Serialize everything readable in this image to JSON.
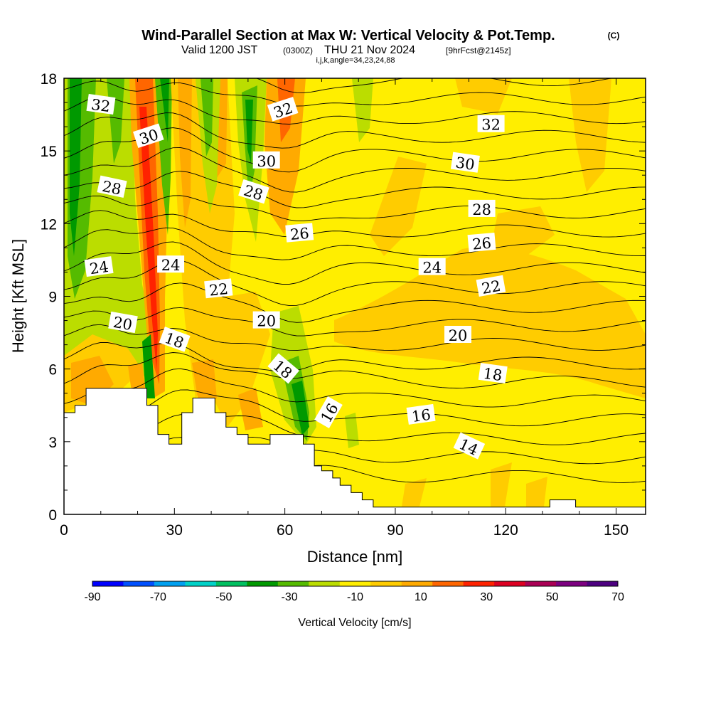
{
  "chart_data": {
    "type": "contour",
    "title": "Wind-Parallel Section at Max W: Vertical Velocity & Pot.Temp.",
    "copyright": "(C)",
    "subtitle": {
      "valid": "Valid 1200 JST",
      "utc": "(0300Z)",
      "date": "THU 21 Nov 2024",
      "forecast": "[9hrFcst@2145z]"
    },
    "section_info": "i,j,k,angle=34,23,24,88",
    "xlabel": "Distance [nm]",
    "ylabel": "Height [Kft MSL]",
    "xlim": [
      0,
      158
    ],
    "ylim": [
      0,
      18
    ],
    "x_ticks": [
      "0",
      "30",
      "60",
      "90",
      "120",
      "150"
    ],
    "y_ticks": [
      "0",
      "3",
      "6",
      "9",
      "12",
      "15",
      "18"
    ],
    "colorbar": {
      "title": "Vertical Velocity [cm/s]",
      "labels": [
        "-90",
        "-70",
        "-50",
        "-30",
        "-10",
        "10",
        "30",
        "50",
        "70"
      ],
      "colors": [
        "#0000ff",
        "#0050ff",
        "#00a0f0",
        "#00d2c8",
        "#00c060",
        "#009900",
        "#55bb00",
        "#bbdd00",
        "#ffee00",
        "#ffcc00",
        "#ffaa00",
        "#ff6600",
        "#ff2200",
        "#dd0022",
        "#aa0055",
        "#7d0080",
        "#4d0080"
      ]
    },
    "contour_labels": [
      {
        "text": "32",
        "x": 10,
        "y": 16.9,
        "rot": 8
      },
      {
        "text": "30",
        "x": 23,
        "y": 15.6,
        "rot": -18
      },
      {
        "text": "28",
        "x": 13,
        "y": 13.5,
        "rot": 12
      },
      {
        "text": "24",
        "x": 9.5,
        "y": 10.2,
        "rot": -8
      },
      {
        "text": "24",
        "x": 29,
        "y": 10.3,
        "rot": 0
      },
      {
        "text": "20",
        "x": 16,
        "y": 7.9,
        "rot": 10
      },
      {
        "text": "18",
        "x": 30,
        "y": 7.2,
        "rot": 20
      },
      {
        "text": "22",
        "x": 42,
        "y": 9.3,
        "rot": -6
      },
      {
        "text": "32",
        "x": 59.5,
        "y": 16.7,
        "rot": -18
      },
      {
        "text": "30",
        "x": 55,
        "y": 14.6,
        "rot": 0
      },
      {
        "text": "28",
        "x": 51.5,
        "y": 13.3,
        "rot": 18
      },
      {
        "text": "26",
        "x": 64,
        "y": 11.6,
        "rot": -5
      },
      {
        "text": "20",
        "x": 55,
        "y": 8.0,
        "rot": 0
      },
      {
        "text": "18",
        "x": 59.5,
        "y": 6.0,
        "rot": 40
      },
      {
        "text": "16",
        "x": 72,
        "y": 4.2,
        "rot": -60
      },
      {
        "text": "24",
        "x": 100,
        "y": 10.2,
        "rot": 0
      },
      {
        "text": "32",
        "x": 116,
        "y": 16.1,
        "rot": 0
      },
      {
        "text": "30",
        "x": 109,
        "y": 14.5,
        "rot": 8
      },
      {
        "text": "28",
        "x": 113.5,
        "y": 12.6,
        "rot": 0
      },
      {
        "text": "26",
        "x": 113.5,
        "y": 11.2,
        "rot": -5
      },
      {
        "text": "22",
        "x": 116,
        "y": 9.4,
        "rot": -10
      },
      {
        "text": "20",
        "x": 107,
        "y": 7.4,
        "rot": 0
      },
      {
        "text": "18",
        "x": 116.5,
        "y": 5.8,
        "rot": 8
      },
      {
        "text": "16",
        "x": 97,
        "y": 4.1,
        "rot": -8
      },
      {
        "text": "14",
        "x": 110,
        "y": 2.8,
        "rot": 25
      }
    ],
    "terrain": [
      [
        0,
        4.2
      ],
      [
        3,
        4.2
      ],
      [
        3,
        4.5
      ],
      [
        6,
        4.5
      ],
      [
        6,
        5.2
      ],
      [
        22.5,
        5.2
      ],
      [
        22.5,
        4.5
      ],
      [
        25.5,
        4.5
      ],
      [
        25.5,
        3.3
      ],
      [
        28.5,
        3.3
      ],
      [
        28.5,
        2.9
      ],
      [
        32,
        2.9
      ],
      [
        32,
        4.2
      ],
      [
        35,
        4.2
      ],
      [
        35,
        4.8
      ],
      [
        41,
        4.8
      ],
      [
        41,
        4.2
      ],
      [
        44,
        4.2
      ],
      [
        44,
        3.6
      ],
      [
        47,
        3.6
      ],
      [
        47,
        3.3
      ],
      [
        50,
        3.3
      ],
      [
        50,
        2.9
      ],
      [
        56,
        2.9
      ],
      [
        56,
        3.3
      ],
      [
        65,
        3.3
      ],
      [
        65,
        2.9
      ],
      [
        68,
        2.9
      ],
      [
        68,
        2.0
      ],
      [
        70,
        2.0
      ],
      [
        70,
        1.8
      ],
      [
        73,
        1.8
      ],
      [
        73,
        1.5
      ],
      [
        75,
        1.5
      ],
      [
        75,
        1.2
      ],
      [
        78,
        1.2
      ],
      [
        78,
        0.9
      ],
      [
        81,
        0.9
      ],
      [
        81,
        0.6
      ],
      [
        84,
        0.6
      ],
      [
        84,
        0.3
      ],
      [
        132,
        0.3
      ],
      [
        132,
        0.6
      ],
      [
        139,
        0.6
      ],
      [
        139,
        0.3
      ],
      [
        158,
        0.3
      ],
      [
        158,
        0
      ],
      [
        0,
        0
      ]
    ]
  }
}
